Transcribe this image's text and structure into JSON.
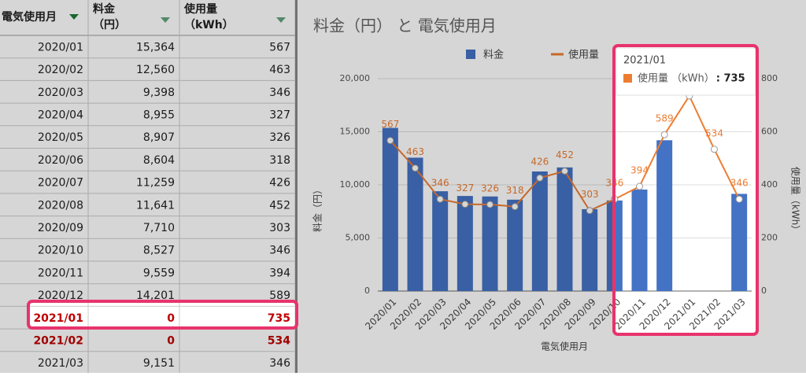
{
  "table": {
    "headers": [
      [
        "電気使用月"
      ],
      [
        "料金",
        "（円）"
      ],
      [
        "使用量",
        "（kWh）"
      ]
    ],
    "rows": [
      [
        "2020/01",
        "15,364",
        "567"
      ],
      [
        "2020/02",
        "12,560",
        "463"
      ],
      [
        "2020/03",
        "9,398",
        "346"
      ],
      [
        "2020/04",
        "8,955",
        "327"
      ],
      [
        "2020/05",
        "8,907",
        "326"
      ],
      [
        "2020/06",
        "8,604",
        "318"
      ],
      [
        "2020/07",
        "11,259",
        "426"
      ],
      [
        "2020/08",
        "11,641",
        "452"
      ],
      [
        "2020/09",
        "7,710",
        "303"
      ],
      [
        "2020/10",
        "8,527",
        "346"
      ],
      [
        "2020/11",
        "9,559",
        "394"
      ],
      [
        "2020/12",
        "14,201",
        "589"
      ],
      [
        "2021/01",
        "0",
        "735"
      ],
      [
        "2021/02",
        "0",
        "534"
      ],
      [
        "2021/03",
        "9,151",
        "346"
      ]
    ],
    "highlight_rows": [
      12,
      13
    ]
  },
  "chart_data": {
    "type": "bar",
    "title": "料金（円） と 電気使用月",
    "x_label": "電気使用月",
    "y_label": "料金（円）",
    "y2_label": "使用量（kWh）",
    "categories": [
      "2020/01",
      "2020/02",
      "2020/03",
      "2020/04",
      "2020/05",
      "2020/06",
      "2020/07",
      "2020/08",
      "2020/09",
      "2020/10",
      "2020/11",
      "2020/12",
      "2021/01",
      "2021/02",
      "2021/03"
    ],
    "series": [
      {
        "name": "料金",
        "type": "bar",
        "color": "#4472c4",
        "values": [
          15364,
          12560,
          9398,
          8955,
          8907,
          8604,
          11259,
          11641,
          7710,
          8527,
          9559,
          14201,
          0,
          0,
          9151
        ]
      },
      {
        "name": "使用量",
        "type": "line",
        "axis": "y2",
        "color": "#ed7d31",
        "values": [
          567,
          463,
          346,
          327,
          326,
          318,
          426,
          452,
          303,
          346,
          394,
          589,
          735,
          534,
          346
        ]
      }
    ],
    "ylim": [
      0,
      20000
    ],
    "yticks": [
      0,
      {
        "value": 5000,
        "label": "5,000"
      },
      {
        "value": 10000,
        "label": "10,000"
      },
      {
        "value": 15000,
        "label": "15,000"
      },
      {
        "value": 20000,
        "label": "20,000"
      }
    ],
    "y2lim": [
      0,
      800
    ],
    "y2ticks": [
      0,
      200,
      400,
      600,
      800
    ],
    "grid": true,
    "legend": "top",
    "tooltip": {
      "title": "2021/01",
      "label": "使用量 （kWh）",
      "value": ": 735"
    }
  }
}
